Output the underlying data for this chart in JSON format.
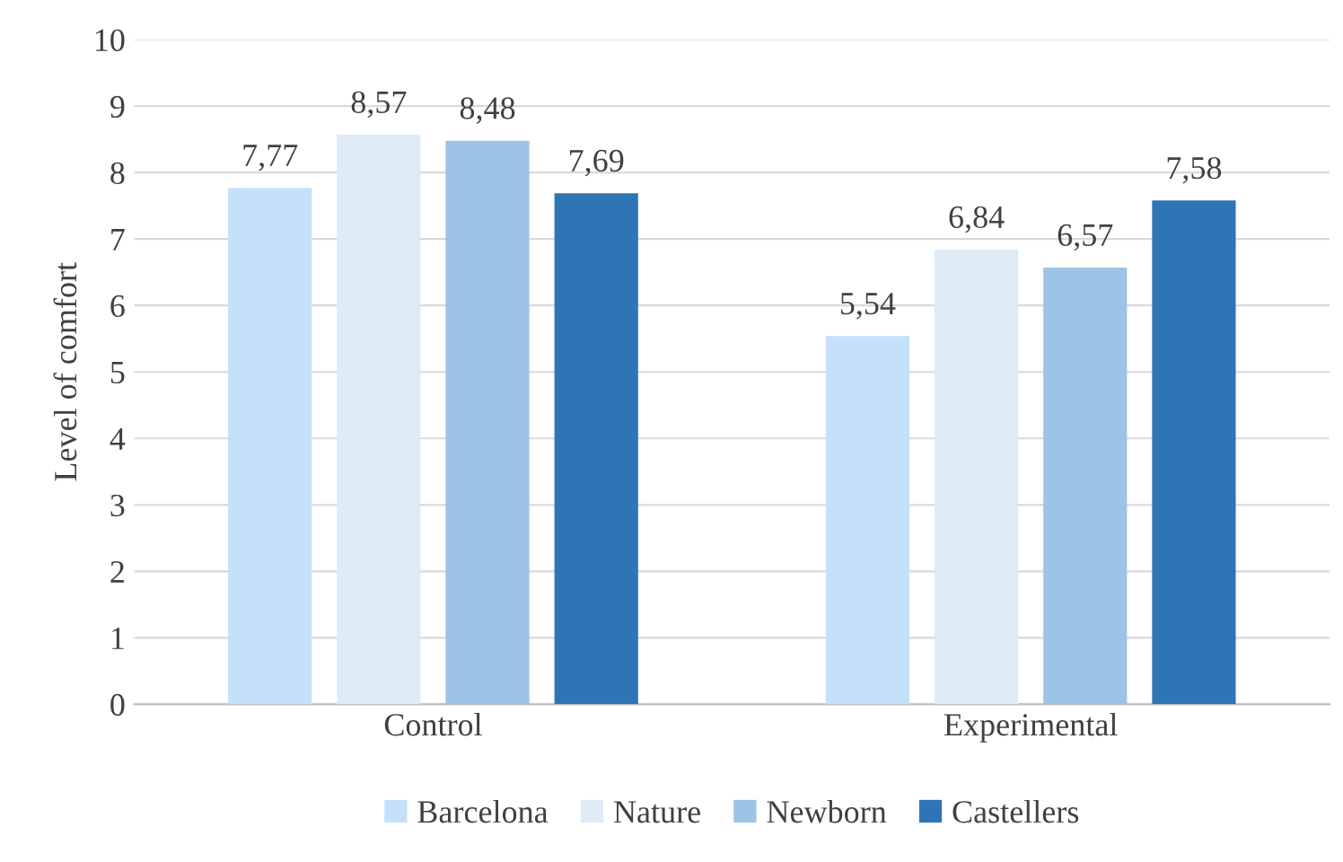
{
  "chart_data": {
    "type": "bar",
    "ylabel": "Level of comfort",
    "categories": [
      "Control",
      "Experimental"
    ],
    "series": [
      {
        "name": "Barcelona",
        "color": "#c5e0fa",
        "values": [
          7.77,
          5.54
        ],
        "value_labels": [
          "7,77",
          "5,54"
        ]
      },
      {
        "name": "Nature",
        "color": "#deebf7",
        "values": [
          8.57,
          6.84
        ],
        "value_labels": [
          "8,57",
          "6,84"
        ]
      },
      {
        "name": "Newborn",
        "color": "#9dc3e6",
        "values": [
          8.48,
          6.57
        ],
        "value_labels": [
          "8,48",
          "6,57"
        ]
      },
      {
        "name": "Castellers",
        "color": "#2e75b6",
        "values": [
          7.69,
          7.58
        ],
        "value_labels": [
          "7,69",
          "7,58"
        ]
      }
    ],
    "ylim": [
      0,
      10
    ],
    "yticks": [
      0,
      1,
      2,
      3,
      4,
      5,
      6,
      7,
      8,
      9,
      10
    ],
    "grid": "y",
    "legend": "bottom"
  }
}
